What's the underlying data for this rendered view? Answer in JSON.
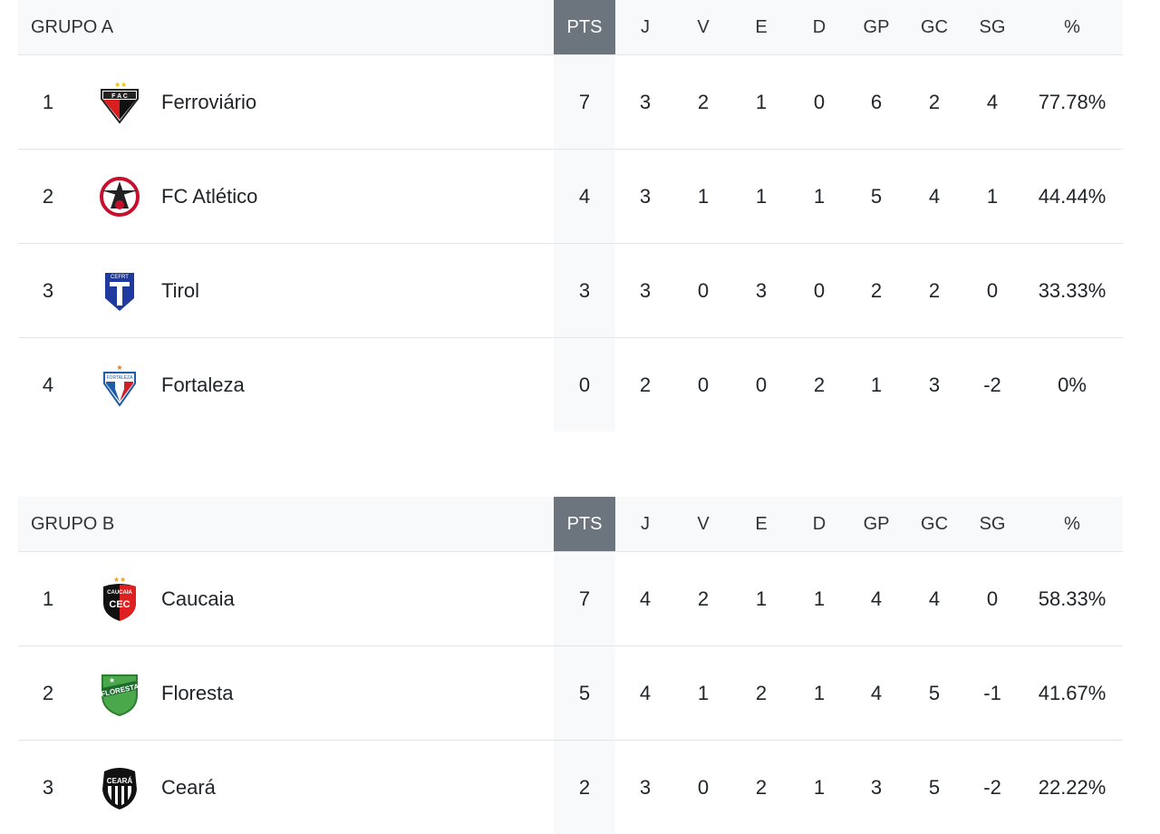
{
  "columns": [
    "PTS",
    "J",
    "V",
    "E",
    "D",
    "GP",
    "GC",
    "SG",
    "%"
  ],
  "groups": [
    {
      "title": "GRUPO A",
      "rows": [
        {
          "pos": "1",
          "team": "Ferroviário",
          "logo": "ferroviario-crest",
          "pts": "7",
          "j": "3",
          "v": "2",
          "e": "1",
          "d": "0",
          "gp": "6",
          "gc": "2",
          "sg": "4",
          "pct": "77.78%"
        },
        {
          "pos": "2",
          "team": "FC Atlético",
          "logo": "fc-atletico-crest",
          "pts": "4",
          "j": "3",
          "v": "1",
          "e": "1",
          "d": "1",
          "gp": "5",
          "gc": "4",
          "sg": "1",
          "pct": "44.44%"
        },
        {
          "pos": "3",
          "team": "Tirol",
          "logo": "tirol-crest",
          "pts": "3",
          "j": "3",
          "v": "0",
          "e": "3",
          "d": "0",
          "gp": "2",
          "gc": "2",
          "sg": "0",
          "pct": "33.33%"
        },
        {
          "pos": "4",
          "team": "Fortaleza",
          "logo": "fortaleza-crest",
          "pts": "0",
          "j": "2",
          "v": "0",
          "e": "0",
          "d": "2",
          "gp": "1",
          "gc": "3",
          "sg": "-2",
          "pct": "0%"
        }
      ]
    },
    {
      "title": "GRUPO B",
      "rows": [
        {
          "pos": "1",
          "team": "Caucaia",
          "logo": "caucaia-crest",
          "pts": "7",
          "j": "4",
          "v": "2",
          "e": "1",
          "d": "1",
          "gp": "4",
          "gc": "4",
          "sg": "0",
          "pct": "58.33%"
        },
        {
          "pos": "2",
          "team": "Floresta",
          "logo": "floresta-crest",
          "pts": "5",
          "j": "4",
          "v": "1",
          "e": "2",
          "d": "1",
          "gp": "4",
          "gc": "5",
          "sg": "-1",
          "pct": "41.67%"
        },
        {
          "pos": "3",
          "team": "Ceará",
          "logo": "ceara-crest",
          "pts": "2",
          "j": "3",
          "v": "0",
          "e": "2",
          "d": "1",
          "gp": "3",
          "gc": "5",
          "sg": "-2",
          "pct": "22.22%"
        }
      ]
    }
  ],
  "colors": {
    "pts_header": "#6c757d",
    "header_bg": "#f8f9fa"
  }
}
